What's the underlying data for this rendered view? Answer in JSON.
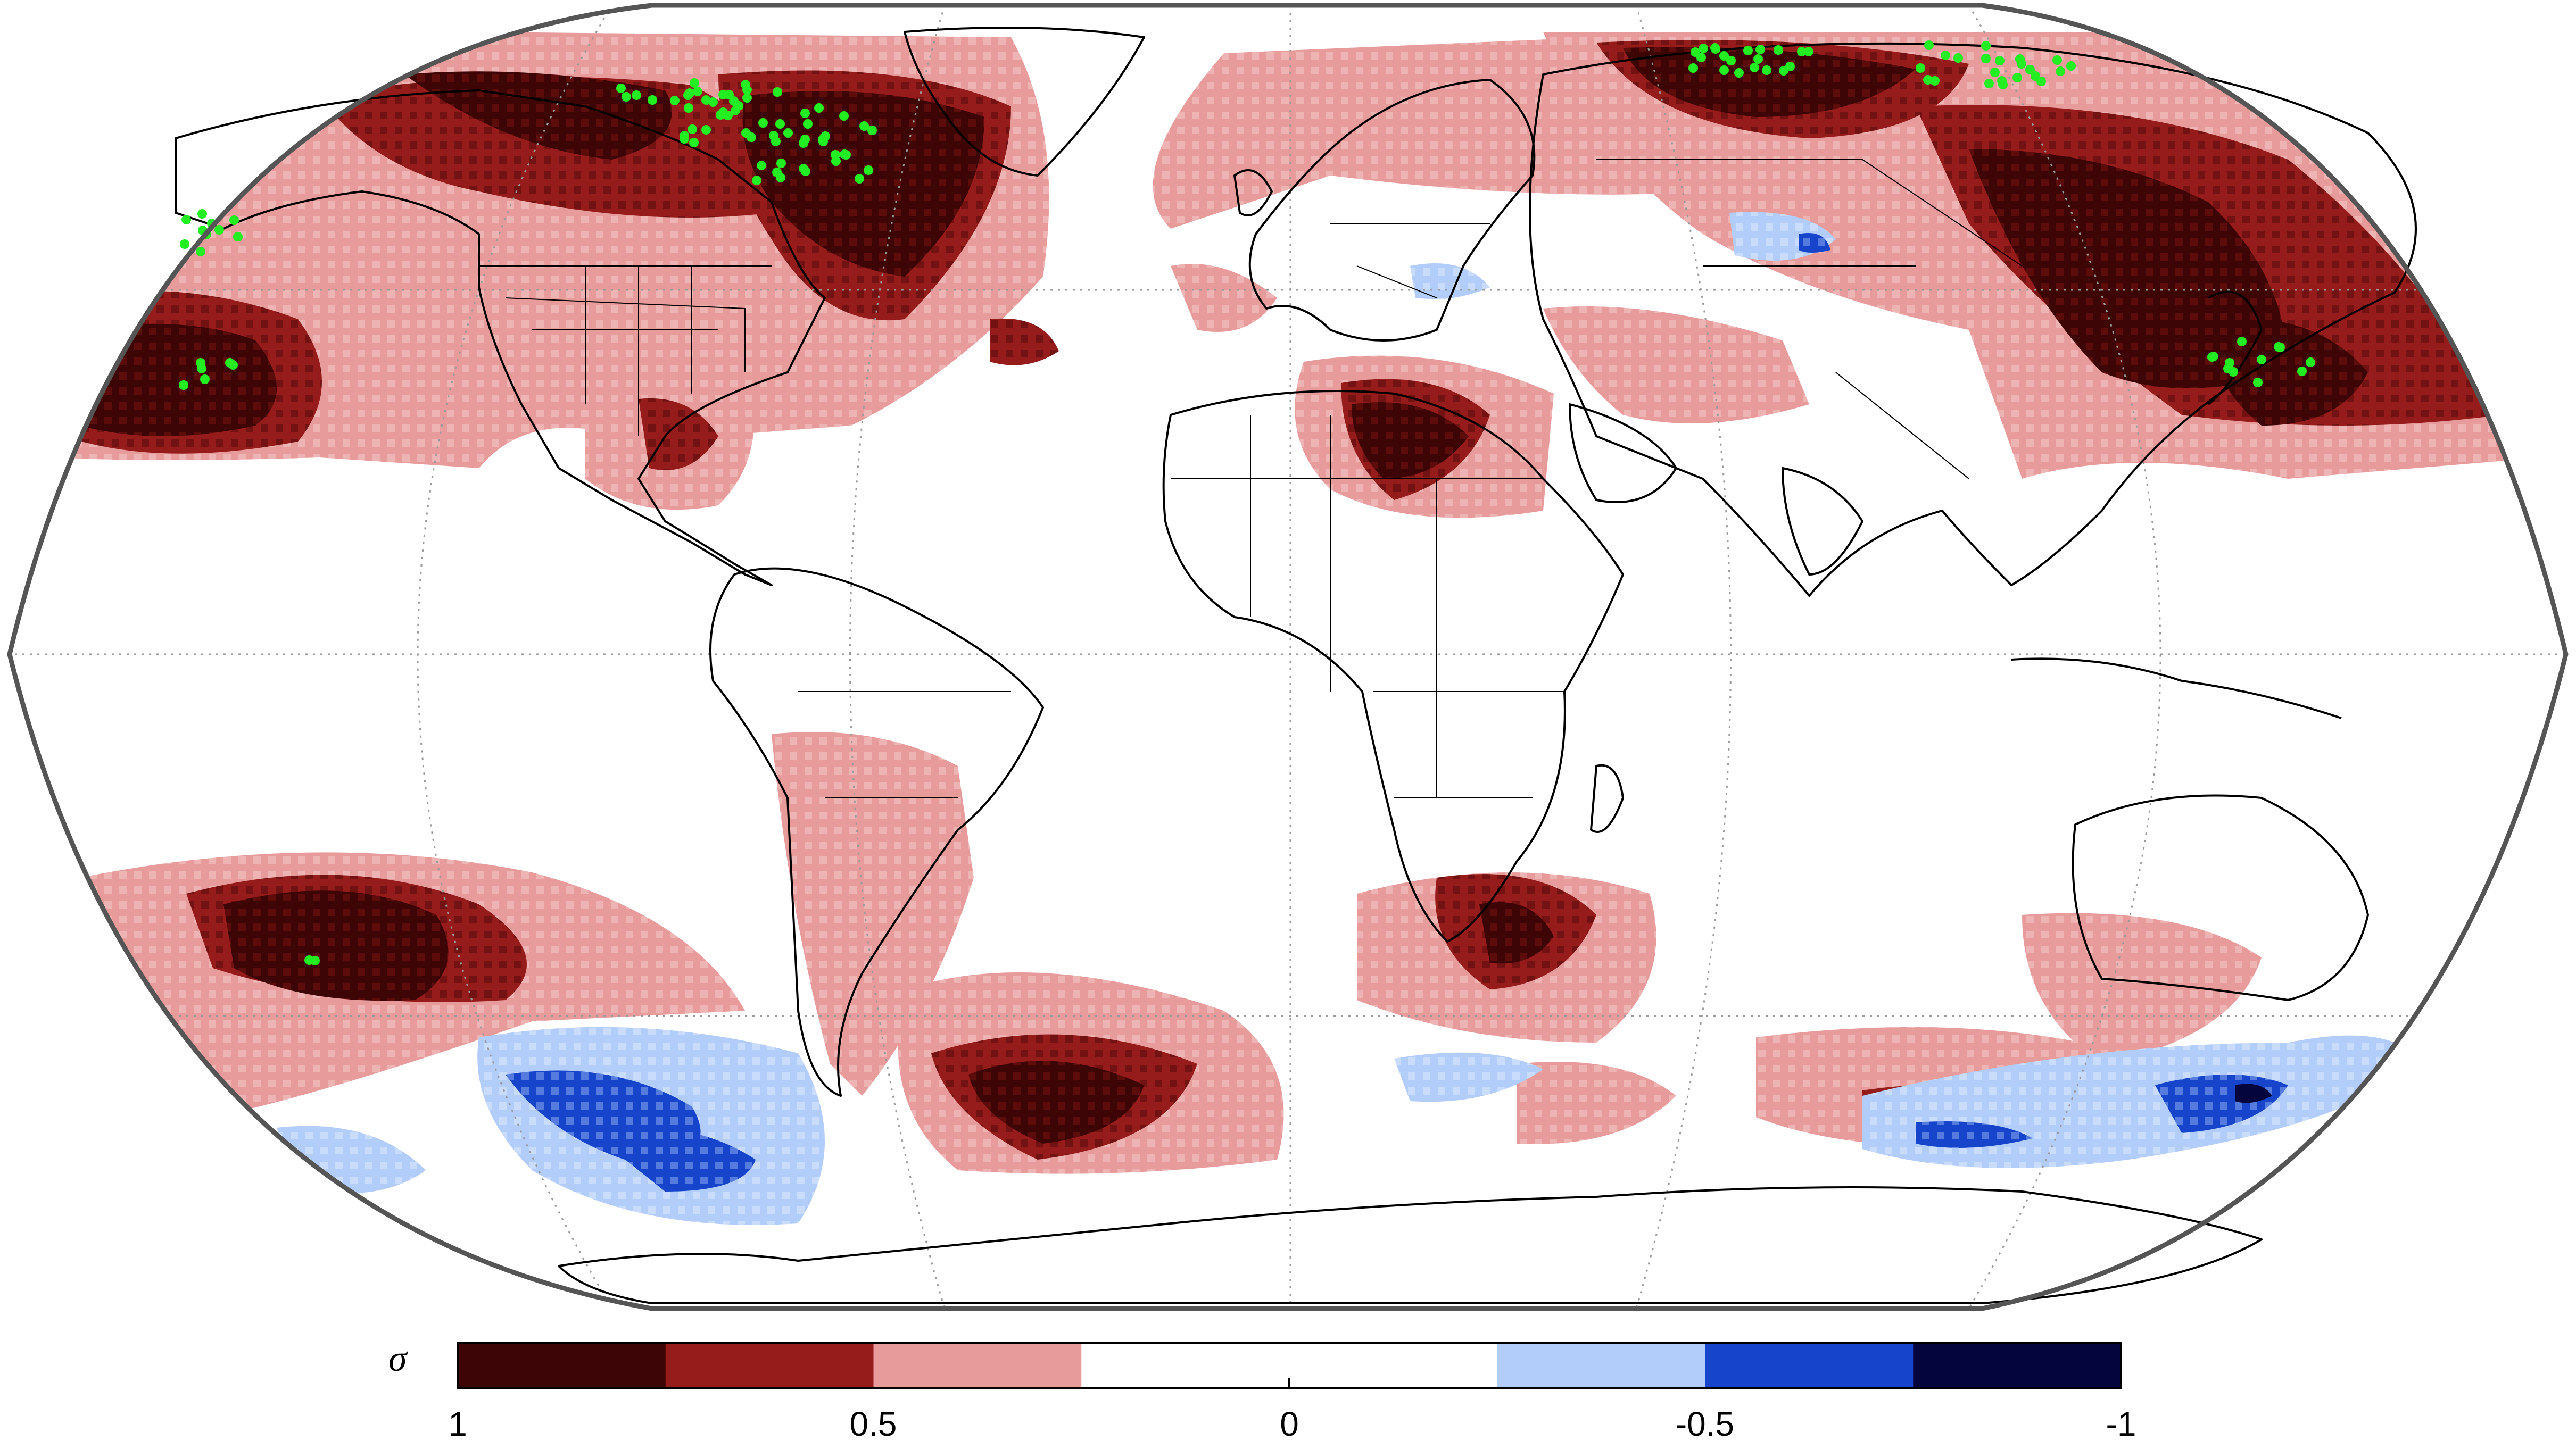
{
  "map": {
    "projection": "Robinson (global, Pacific-centered east-west wrap)",
    "graticule": "dotted grey",
    "stippling": "green dots mark significant grid cells over Canada, Siberia, North Pacific, NE Asia and South Pacific",
    "colors": {
      "land_outline": "#000000",
      "graticule": "#9a9a9a",
      "stipple": "#22ee22",
      "frame": "#555555"
    }
  },
  "colorbar": {
    "symbol": "σ",
    "bins": [
      {
        "range": "0.75 to 1",
        "color": "#3d0505"
      },
      {
        "range": "0.5 to 0.75",
        "color": "#961b1b"
      },
      {
        "range": "0.25 to 0.5",
        "color": "#e89b9b"
      },
      {
        "range": "-0.25 to 0.25",
        "color": "#ffffff"
      },
      {
        "range": "-0.5 to -0.25",
        "color": "#b3cdfa"
      },
      {
        "range": "-0.75 to -0.5",
        "color": "#1645cc"
      },
      {
        "range": "-1 to -0.75",
        "color": "#05053d"
      }
    ],
    "tick_labels": [
      "1",
      "0.5",
      "0",
      "-0.5",
      "-1"
    ]
  }
}
